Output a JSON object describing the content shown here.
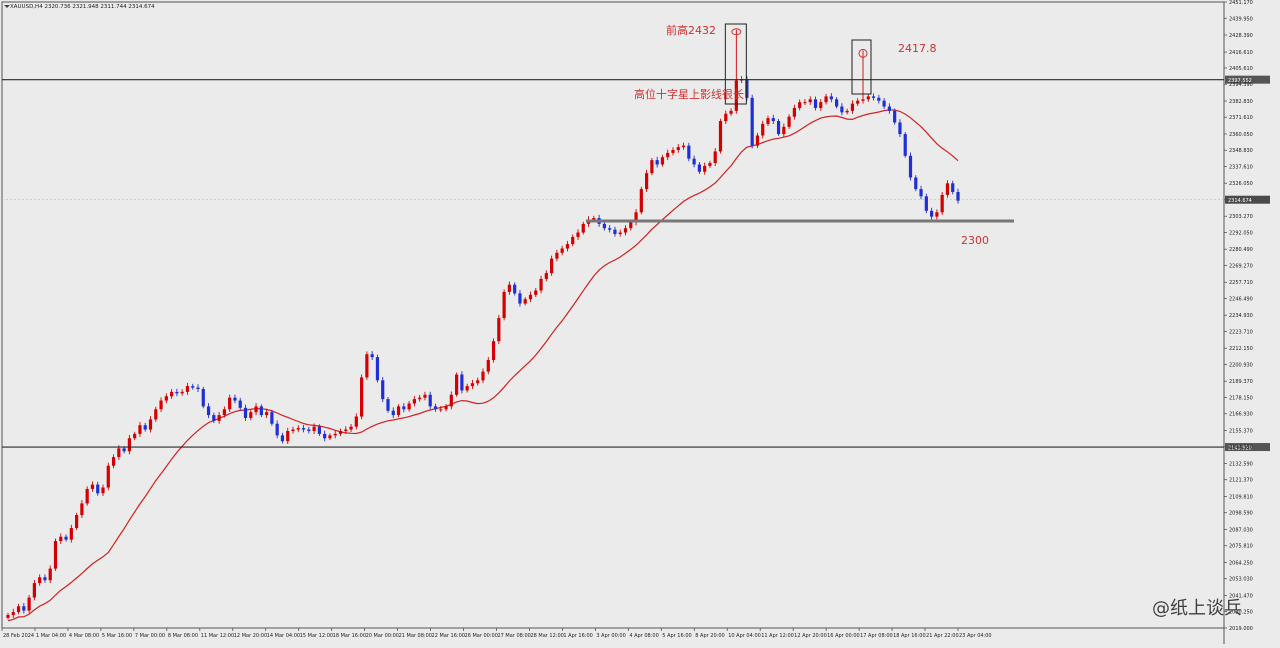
{
  "header": {
    "symbol_line": "XAUUSD,H4  2320.736 2321.948 2311.744 2314.674"
  },
  "watermark": "@纸上谈兵",
  "annotations": {
    "prev_high": "前高2432",
    "high_2": "2417.8",
    "doji_note": "高位十字星上影线很长",
    "support": "2300"
  },
  "colors": {
    "bull": "#d40000",
    "bear": "#1e2fd6",
    "ma": "#d42020",
    "hline": "#2a2a2a",
    "annot": "#d03030"
  },
  "chart_data": {
    "type": "candlestick",
    "symbol": "XAUUSD",
    "timeframe": "H4",
    "last_price": 2314.674,
    "ylim": [
      2019.0,
      2451.17
    ],
    "price_tick_labels": [
      2451.17,
      2439.95,
      2428.39,
      2416.61,
      2405.61,
      2394.39,
      2382.83,
      2371.61,
      2360.05,
      2348.83,
      2337.61,
      2326.05,
      2314.674,
      2303.27,
      2292.05,
      2280.49,
      2269.27,
      2257.71,
      2246.49,
      2234.93,
      2223.71,
      2212.15,
      2200.93,
      2189.37,
      2178.15,
      2166.93,
      2155.37,
      2144.15,
      2132.59,
      2121.37,
      2109.81,
      2098.59,
      2087.03,
      2075.81,
      2064.25,
      2053.03,
      2041.47,
      2030.25,
      2019.0
    ],
    "time_tick_labels": [
      "28 Feb 2024",
      "1 Mar 04:00",
      "4 Mar 08:00",
      "5 Mar 16:00",
      "7 Mar 00:00",
      "8 Mar 08:00",
      "11 Mar 12:00",
      "12 Mar 20:00",
      "14 Mar 04:00",
      "15 Mar 12:00",
      "18 Mar 16:00",
      "20 Mar 00:00",
      "21 Mar 08:00",
      "22 Mar 16:00",
      "26 Mar 00:00",
      "27 Mar 08:00",
      "28 Mar 12:00",
      "1 Apr 16:00",
      "3 Apr 00:00",
      "4 Apr 08:00",
      "5 Apr 16:00",
      "8 Apr 20:00",
      "10 Apr 04:00",
      "11 Apr 12:00",
      "12 Apr 20:00",
      "16 Apr 00:00",
      "17 Apr 08:00",
      "18 Apr 16:00",
      "21 Apr 22:00",
      "23 Apr 04:00"
    ],
    "horizontal_levels": [
      2397.55,
      2143.92
    ],
    "horizontal_level_labels": [
      "2397.552",
      "2143.920"
    ],
    "support_level": 2300,
    "marked_highs": [
      2432,
      2417.8
    ],
    "closes": [
      2028,
      2030,
      2034,
      2031,
      2040,
      2050,
      2054,
      2052,
      2060,
      2079,
      2082,
      2080,
      2088,
      2097,
      2105,
      2115,
      2118,
      2112,
      2116,
      2131,
      2137,
      2143,
      2141,
      2150,
      2153,
      2159,
      2156,
      2163,
      2170,
      2176,
      2179,
      2182,
      2181,
      2182,
      2186,
      2185,
      2184,
      2172,
      2166,
      2162,
      2166,
      2170,
      2178,
      2176,
      2171,
      2164,
      2168,
      2172,
      2166,
      2168,
      2160,
      2152,
      2148,
      2155,
      2156,
      2157,
      2156,
      2155,
      2158,
      2153,
      2150,
      2152,
      2153,
      2155,
      2156,
      2158,
      2165,
      2192,
      2208,
      2206,
      2190,
      2177,
      2169,
      2166,
      2172,
      2170,
      2174,
      2177,
      2178,
      2180,
      2172,
      2170,
      2170,
      2172,
      2180,
      2194,
      2183,
      2186,
      2188,
      2190,
      2196,
      2204,
      2217,
      2233,
      2251,
      2256,
      2250,
      2243,
      2246,
      2249,
      2252,
      2260,
      2264,
      2274,
      2278,
      2281,
      2284,
      2289,
      2292,
      2298,
      2301,
      2302,
      2298,
      2295,
      2294,
      2291,
      2292,
      2295,
      2299,
      2306,
      2322,
      2333,
      2342,
      2339,
      2344,
      2347,
      2349,
      2351,
      2352,
      2343,
      2339,
      2334,
      2338,
      2340,
      2348,
      2369,
      2374,
      2376,
      2397,
      2398,
      2385,
      2352,
      2359,
      2367,
      2371,
      2369,
      2360,
      2365,
      2372,
      2378,
      2382,
      2382,
      2384,
      2378,
      2382,
      2386,
      2384,
      2379,
      2375,
      2376,
      2381,
      2383,
      2384,
      2386,
      2385,
      2383,
      2379,
      2376,
      2368,
      2360,
      2345,
      2330,
      2322,
      2317,
      2307,
      2303,
      2306,
      2318,
      2326,
      2320,
      2314
    ]
  }
}
